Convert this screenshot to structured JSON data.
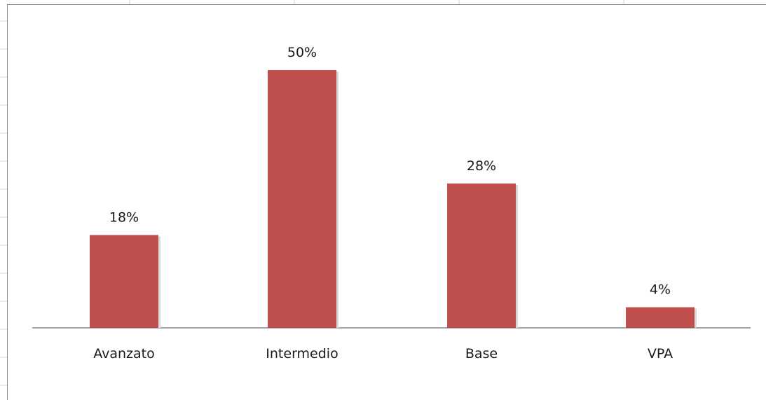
{
  "chart_data": {
    "type": "bar",
    "categories": [
      "Avanzato",
      "Intermedio",
      "Base",
      "VPA"
    ],
    "values": [
      18,
      50,
      28,
      4
    ],
    "data_labels": [
      "18%",
      "50%",
      "28%",
      "4%"
    ],
    "title": "",
    "xlabel": "",
    "ylabel": "",
    "ylim": [
      0,
      50
    ],
    "grid": false,
    "legend": "none",
    "bar_color": "#c0504d"
  }
}
